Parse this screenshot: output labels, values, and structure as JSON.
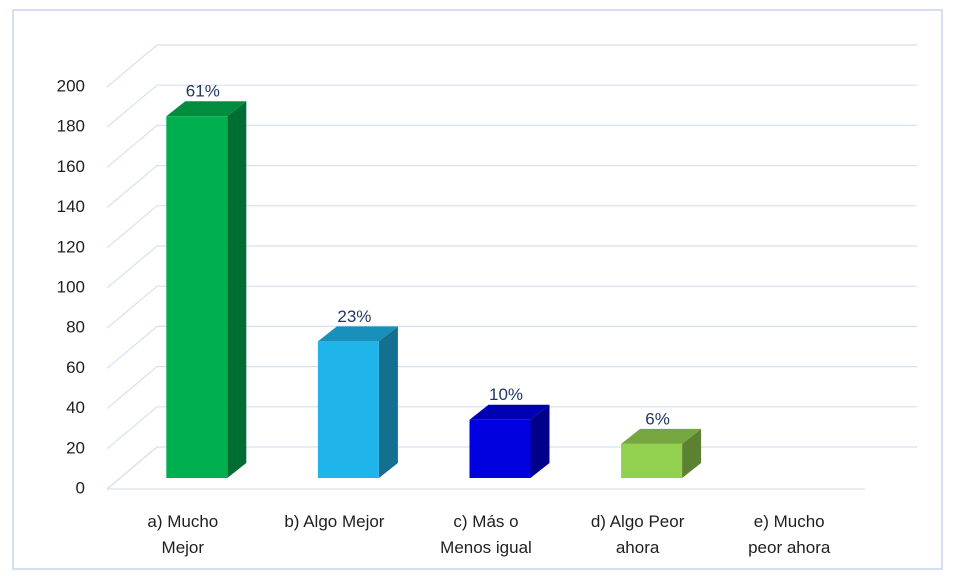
{
  "chart_data": {
    "type": "bar3d",
    "categories": [
      "a) Mucho\nMejor",
      "b) Algo Mejor",
      "c) Más o\nMenos igual",
      "d) Algo Peor\nahora",
      "e) Mucho\npeor  ahora"
    ],
    "values": [
      180,
      68,
      29,
      17,
      0
    ],
    "annotations": [
      "61%",
      "23%",
      "10%",
      "6%"
    ],
    "colors": [
      "#00b050",
      "#1fb4ea",
      "#0000e0",
      "#92d050",
      "#7f7f7f"
    ],
    "ylim": [
      0,
      200
    ],
    "yticks": [
      0,
      20,
      40,
      60,
      80,
      100,
      120,
      140,
      160,
      180,
      200
    ],
    "grid": true
  }
}
